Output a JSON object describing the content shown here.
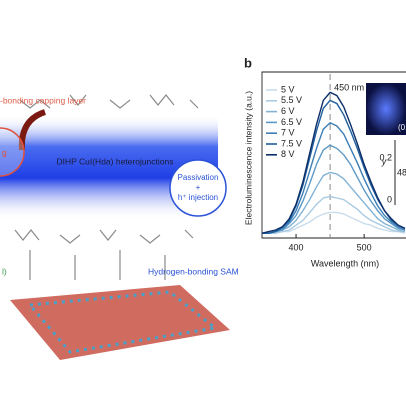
{
  "panel_label": "b",
  "illustration": {
    "capping_label": "-bonding capping layer",
    "heterojunction_label": "DIHP CuI(Hda) heterojunctions",
    "passivation": [
      "Passivation",
      "+",
      "h⁺ injection"
    ],
    "sam_label": "Hydrogen-bonding SAM",
    "left_fragment": "g",
    "green_fragment": "l)"
  },
  "inset": {
    "ylabel": "y",
    "ticks": [
      "0.2",
      "0"
    ],
    "annotations": [
      "(0.",
      "480"
    ]
  },
  "chart_data": {
    "type": "line",
    "xlabel": "Wavelength (nm)",
    "ylabel": "Electroluminescence intensity (a.u.)",
    "annotation": "450 nm",
    "vline": 450,
    "xlim": [
      350,
      560
    ],
    "xticks": [
      400,
      500
    ],
    "ylim": [
      0,
      1
    ],
    "x": [
      350,
      360,
      370,
      380,
      390,
      400,
      410,
      420,
      430,
      440,
      450,
      460,
      470,
      480,
      490,
      500,
      510,
      520,
      530,
      540,
      550,
      560
    ],
    "series": [
      {
        "name": "5 V",
        "color": "#c9dcec",
        "values": [
          0.03,
          0.03,
          0.03,
          0.04,
          0.04,
          0.06,
          0.08,
          0.1,
          0.13,
          0.15,
          0.16,
          0.16,
          0.15,
          0.13,
          0.11,
          0.09,
          0.08,
          0.06,
          0.05,
          0.04,
          0.04,
          0.03
        ]
      },
      {
        "name": "5.5 V",
        "color": "#a9cae2",
        "values": [
          0.03,
          0.03,
          0.03,
          0.04,
          0.05,
          0.08,
          0.11,
          0.16,
          0.21,
          0.25,
          0.26,
          0.25,
          0.24,
          0.21,
          0.18,
          0.14,
          0.11,
          0.09,
          0.07,
          0.05,
          0.04,
          0.04
        ]
      },
      {
        "name": "6 V",
        "color": "#82b3d5",
        "values": [
          0.03,
          0.03,
          0.04,
          0.05,
          0.07,
          0.11,
          0.17,
          0.24,
          0.32,
          0.39,
          0.41,
          0.4,
          0.37,
          0.32,
          0.27,
          0.22,
          0.17,
          0.12,
          0.09,
          0.07,
          0.05,
          0.04
        ]
      },
      {
        "name": "6.5 V",
        "color": "#5d99c6",
        "values": [
          0.03,
          0.03,
          0.04,
          0.05,
          0.09,
          0.14,
          0.23,
          0.34,
          0.46,
          0.55,
          0.58,
          0.56,
          0.52,
          0.46,
          0.38,
          0.3,
          0.23,
          0.17,
          0.12,
          0.09,
          0.06,
          0.05
        ]
      },
      {
        "name": "7 V",
        "color": "#3b7db4",
        "values": [
          0.03,
          0.03,
          0.04,
          0.06,
          0.1,
          0.17,
          0.28,
          0.42,
          0.56,
          0.68,
          0.72,
          0.7,
          0.65,
          0.56,
          0.47,
          0.37,
          0.28,
          0.2,
          0.14,
          0.1,
          0.07,
          0.05
        ]
      },
      {
        "name": "7.5 V",
        "color": "#1f5f9d",
        "values": [
          0.03,
          0.03,
          0.04,
          0.07,
          0.11,
          0.2,
          0.33,
          0.5,
          0.67,
          0.81,
          0.86,
          0.84,
          0.77,
          0.67,
          0.56,
          0.44,
          0.33,
          0.24,
          0.17,
          0.11,
          0.08,
          0.06
        ]
      },
      {
        "name": "8 V",
        "color": "#0c2d69",
        "values": [
          0.03,
          0.04,
          0.05,
          0.07,
          0.12,
          0.21,
          0.35,
          0.53,
          0.71,
          0.86,
          0.91,
          0.89,
          0.82,
          0.71,
          0.59,
          0.46,
          0.35,
          0.25,
          0.17,
          0.12,
          0.08,
          0.06
        ]
      }
    ]
  }
}
